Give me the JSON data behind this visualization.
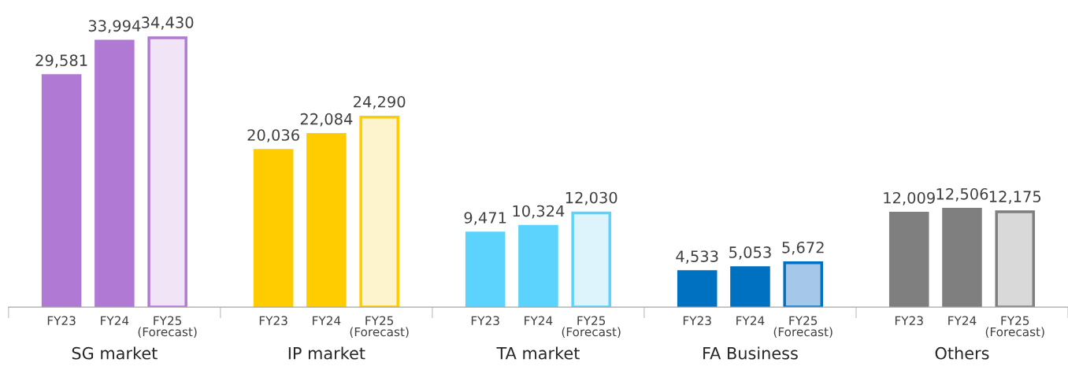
{
  "chart_data": {
    "type": "bar",
    "categories": [
      "FY23",
      "FY24",
      "FY25\n(Forecast)",
      null,
      "FY23",
      "FY24",
      "FY25\n(Forecast)",
      null,
      "FY23",
      "FY24",
      "FY25\n(Forecast)",
      null,
      "FY23",
      "FY24",
      "FY25\n(Forecast)",
      null,
      "FY23",
      "FY24",
      "FY25\n(Forecast)"
    ],
    "values": [
      29581,
      33994,
      34430,
      null,
      20036,
      22084,
      24290,
      null,
      9471,
      10324,
      12030,
      null,
      4533,
      5053,
      5672,
      null,
      12009,
      12506,
      12175
    ],
    "colors": [
      "#b07ad4",
      "#b07ad4",
      "#f1e4f7",
      null,
      "#ffcc00",
      "#ffcc00",
      "#fdf3cc",
      null,
      "#5bd3fd",
      "#5bd3fd",
      "#ddf4fd",
      null,
      "#0070c0",
      "#0070c0",
      "#a5c8ea",
      null,
      "#7f7f7f",
      "#7f7f7f",
      "#d9d9d9"
    ],
    "value_labels": [
      "29,581",
      "33,994",
      "34,430",
      null,
      "20,036",
      "22,084",
      "24,290",
      null,
      "9,471",
      "10,324",
      "12,030",
      null,
      "4,533",
      "5,053",
      "5,672",
      null,
      "12,009",
      "12,506",
      "12,175"
    ],
    "annotations": [
      "SG market",
      "IP market",
      "TA market",
      "FA Business",
      "Others"
    ]
  }
}
